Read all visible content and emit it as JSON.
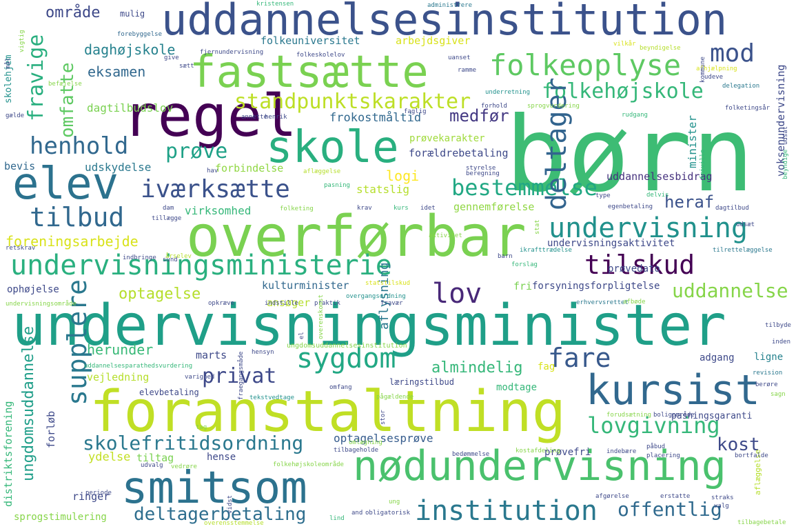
{
  "words": [
    {
      "text": "børn",
      "color": "#3dbc74"
    },
    {
      "text": "undervisningsminister",
      "color": "#1f9f88"
    },
    {
      "text": "uddannelsesinstitution",
      "color": "#3b528b"
    },
    {
      "text": "foranstaltning",
      "color": "#c0df25"
    },
    {
      "text": "overførbar",
      "color": "#7ad151"
    },
    {
      "text": "nødundervisning",
      "color": "#4ac16d"
    },
    {
      "text": "fastsætte",
      "color": "#7ad151"
    },
    {
      "text": "regel",
      "color": "#440154"
    },
    {
      "text": "skole",
      "color": "#29af7f"
    },
    {
      "text": "smitsom",
      "color": "#2c728e"
    },
    {
      "text": "kursist",
      "color": "#31688e"
    },
    {
      "text": "elev",
      "color": "#2c728e"
    },
    {
      "text": "undervisningsministerie",
      "color": "#2ab07f"
    },
    {
      "text": "folkeoplyse",
      "color": "#5ec962"
    },
    {
      "text": "undervisning",
      "color": "#21918c"
    },
    {
      "text": "institution",
      "color": "#2a788e"
    },
    {
      "text": "sygdom",
      "color": "#22a884"
    },
    {
      "text": "iværksætte",
      "color": "#3b528b"
    },
    {
      "text": "standpunktskarakter",
      "color": "#bddf26"
    },
    {
      "text": "deltager",
      "color": "#32648e"
    },
    {
      "text": "tilskud",
      "color": "#440154"
    },
    {
      "text": "lovgivning",
      "color": "#35b779"
    },
    {
      "text": "supplere",
      "color": "#2a788e"
    },
    {
      "text": "bestemmelse",
      "color": "#22a884"
    },
    {
      "text": "folkehøjskole",
      "color": "#35b779"
    },
    {
      "text": "tilbud",
      "color": "#31688e"
    },
    {
      "text": "henhold",
      "color": "#31688e"
    },
    {
      "text": "offentlig",
      "color": "#306a8e"
    },
    {
      "text": "deltagerbetaling",
      "color": "#2e6e8e"
    },
    {
      "text": "skolefritidsordning",
      "color": "#2a788e"
    },
    {
      "text": "privat",
      "color": "#3e4989"
    },
    {
      "text": "fare",
      "color": "#38598c"
    },
    {
      "text": "uddannelse",
      "color": "#86d549"
    },
    {
      "text": "lov",
      "color": "#482878"
    },
    {
      "text": "mod",
      "color": "#3b528b"
    },
    {
      "text": "omfatte",
      "color": "#5ec962"
    },
    {
      "text": "fravige",
      "color": "#29af7f"
    },
    {
      "text": "prøve",
      "color": "#1fa187"
    },
    {
      "text": "område",
      "color": "#3e4989"
    },
    {
      "text": "ungdomsuddannelse",
      "color": "#1f9e89"
    },
    {
      "text": "heraf",
      "color": "#3b528b"
    },
    {
      "text": "kost",
      "color": "#3e4a89"
    },
    {
      "text": "optagelse",
      "color": "#b5de2b"
    },
    {
      "text": "foreningsarbejde",
      "color": "#d8e219"
    },
    {
      "text": "daghøjskole",
      "color": "#26828e"
    },
    {
      "text": "eksamen",
      "color": "#31688e"
    },
    {
      "text": "logi",
      "color": "#fde725"
    },
    {
      "text": "medfør",
      "color": "#443983"
    },
    {
      "text": "almindelig",
      "color": "#35b779"
    },
    {
      "text": "herunder",
      "color": "#38b977"
    },
    {
      "text": "aflysning",
      "color": "#2a788e"
    },
    {
      "text": "ydelse",
      "color": "#c2df23"
    },
    {
      "text": "frokostmåltid",
      "color": "#31688e"
    },
    {
      "text": "optagelsesprøve",
      "color": "#365c8d"
    },
    {
      "text": "dagtilbudslov",
      "color": "#7ad151"
    },
    {
      "text": "udskydelse",
      "color": "#2a788e"
    },
    {
      "text": "bevis",
      "color": "#31688e"
    },
    {
      "text": "prøvekarakter",
      "color": "#9fda3a"
    },
    {
      "text": "forældrebetaling",
      "color": "#3e4989"
    },
    {
      "text": "forbindelse",
      "color": "#90d743"
    },
    {
      "text": "statslig",
      "color": "#b5de2b"
    },
    {
      "text": "virksomhed",
      "color": "#35b779"
    },
    {
      "text": "gennemførelse",
      "color": "#90d743"
    },
    {
      "text": "uddannelsesbidrag",
      "color": "#46327e"
    },
    {
      "text": "undervisningsaktivitet",
      "color": "#3e4989"
    },
    {
      "text": "kulturminister",
      "color": "#31688e"
    },
    {
      "text": "ansøger",
      "color": "#b5de2b"
    },
    {
      "text": "forsyningsforpligtelse",
      "color": "#3e4989"
    },
    {
      "text": "prøvedato",
      "color": "#3e4989"
    },
    {
      "text": "ophøjelse",
      "color": "#3e4989"
    },
    {
      "text": "fri",
      "color": "#7ad151"
    },
    {
      "text": "folkeuniversitet",
      "color": "#2a788e"
    },
    {
      "text": "arbejdsgiver",
      "color": "#d8e219"
    },
    {
      "text": "minister",
      "color": "#21918c"
    },
    {
      "text": "voksenundervisning",
      "color": "#3e4989"
    },
    {
      "text": "marts",
      "color": "#3e4989"
    },
    {
      "text": "adgang",
      "color": "#3e4989"
    },
    {
      "text": "ligne",
      "color": "#26828e"
    },
    {
      "text": "fag",
      "color": "#d8e219"
    },
    {
      "text": "modtage",
      "color": "#35b779"
    },
    {
      "text": "vejledning",
      "color": "#b5de2b"
    },
    {
      "text": "ungdomsuddannelsesinstitution",
      "color": "#86d549"
    },
    {
      "text": "læringstilbud",
      "color": "#3e4989"
    },
    {
      "text": "forløb",
      "color": "#3e4989"
    },
    {
      "text": "tiltag",
      "color": "#7ad151"
    },
    {
      "text": "hense",
      "color": "#3e4989"
    },
    {
      "text": "prøvefri",
      "color": "#3e4989"
    },
    {
      "text": "distriktsforening",
      "color": "#35b779"
    },
    {
      "text": "ringer",
      "color": "#3e4989"
    },
    {
      "text": "sprogstimulering",
      "color": "#86d549"
    },
    {
      "text": "pasningsgaranti",
      "color": "#3e4989"
    },
    {
      "text": "elevbetaling",
      "color": "#3e4989"
    },
    {
      "text": "mulig",
      "color": "#3e4989"
    },
    {
      "text": "skolehjem",
      "color": "#21918c"
    },
    {
      "text": "forebyggelse",
      "color": "#31688e"
    },
    {
      "text": "kristensen",
      "color": "#35b779"
    },
    {
      "text": "administrere",
      "color": "#2a788e"
    },
    {
      "text": "fjernundervisning",
      "color": "#3e4989"
    },
    {
      "text": "folkeskolelov",
      "color": "#3e4989"
    },
    {
      "text": "vilkår",
      "color": "#d8e219"
    },
    {
      "text": "beyndigelse",
      "color": "#b5de2b"
    },
    {
      "text": "beyndige",
      "color": "#35b779"
    },
    {
      "text": "afhjælpning",
      "color": "#d8e219"
    },
    {
      "text": "udeve",
      "color": "#3e4989"
    },
    {
      "text": "delegation",
      "color": "#2a788e"
    },
    {
      "text": "sprogvurdering",
      "color": "#86d549"
    },
    {
      "text": "folketingsår",
      "color": "#3e4989"
    },
    {
      "text": "friville",
      "color": "#35b779"
    },
    {
      "text": "styrelse",
      "color": "#3e4989"
    },
    {
      "text": "beregning",
      "color": "#3e4989"
    },
    {
      "text": "aflæggelse",
      "color": "#b5de2b"
    },
    {
      "text": "pasning",
      "color": "#35b779"
    },
    {
      "text": "folketing",
      "color": "#86d549"
    },
    {
      "text": "krav",
      "color": "#3e4989"
    },
    {
      "text": "kurs",
      "color": "#35b779"
    },
    {
      "text": "idet",
      "color": "#3e4989"
    },
    {
      "text": "egenbetaling",
      "color": "#3e4989"
    },
    {
      "text": "dagtilbud",
      "color": "#3e4989"
    },
    {
      "text": "delvis",
      "color": "#35b779"
    },
    {
      "text": "tillægge",
      "color": "#3e4989"
    },
    {
      "text": "dam",
      "color": "#3e4989"
    },
    {
      "text": "indbringe",
      "color": "#3e4989"
    },
    {
      "text": "årselev",
      "color": "#b5de2b"
    },
    {
      "text": "ikrafttrædelse",
      "color": "#21918c"
    },
    {
      "text": "forslag",
      "color": "#35b779"
    },
    {
      "text": "tilrettelæggelse",
      "color": "#2a788e"
    },
    {
      "text": "undervisningsområde",
      "color": "#86d549"
    },
    {
      "text": "opkræve",
      "color": "#3e4989"
    },
    {
      "text": "indstille",
      "color": "#3e4989"
    },
    {
      "text": "praktik",
      "color": "#3e4989"
    },
    {
      "text": "fravær",
      "color": "#3e4989"
    },
    {
      "text": "overgangsordning",
      "color": "#21918c"
    },
    {
      "text": "statstilskud",
      "color": "#d8e219"
    },
    {
      "text": "erhvervsrettet",
      "color": "#2a788e"
    },
    {
      "text": "afbøde",
      "color": "#86d549"
    },
    {
      "text": "tilbyde",
      "color": "#3e4989"
    },
    {
      "text": "inden",
      "color": "#3e4989"
    },
    {
      "text": "uddannelsesparathedsvurdering",
      "color": "#35b779"
    },
    {
      "text": "hensyn",
      "color": "#3e4989"
    },
    {
      "text": "varighed",
      "color": "#3e4989"
    },
    {
      "text": "omfang",
      "color": "#3e4989"
    },
    {
      "text": "pågældende",
      "color": "#86d549"
    },
    {
      "text": "revision",
      "color": "#2a788e"
    },
    {
      "text": "berøre",
      "color": "#3e4989"
    },
    {
      "text": "tekstvedtage",
      "color": "#21918c"
    },
    {
      "text": "forudsætning",
      "color": "#86d549"
    },
    {
      "text": "boligområde",
      "color": "#3e4989"
    },
    {
      "text": "folkehøjskoleområde",
      "color": "#86d549"
    },
    {
      "text": "omlægning",
      "color": "#86d549"
    },
    {
      "text": "bortfalde",
      "color": "#3e4989"
    },
    {
      "text": "tilbageholde",
      "color": "#3e4989"
    },
    {
      "text": "bedømmelse",
      "color": "#3e4989"
    },
    {
      "text": "kostafdeling",
      "color": "#86d549"
    },
    {
      "text": "indebære",
      "color": "#3e4989"
    },
    {
      "text": "påbud",
      "color": "#3e4989"
    },
    {
      "text": "placering",
      "color": "#3e4989"
    },
    {
      "text": "udvalg",
      "color": "#3e4989"
    },
    {
      "text": "vedrøre",
      "color": "#86d549"
    },
    {
      "text": "periode",
      "color": "#3e4989"
    },
    {
      "text": "afgørelse",
      "color": "#3e4989"
    },
    {
      "text": "erstatte",
      "color": "#3e4989"
    },
    {
      "text": "straks",
      "color": "#3e4989"
    },
    {
      "text": "valg",
      "color": "#3e4989"
    },
    {
      "text": "ung",
      "color": "#86d549"
    },
    {
      "text": "and",
      "color": "#3e4989"
    },
    {
      "text": "obligatorisk",
      "color": "#3e4989"
    },
    {
      "text": "lind",
      "color": "#35b779"
    },
    {
      "text": "overenskomst",
      "color": "#86d549"
    },
    {
      "text": "overensstemmelse",
      "color": "#b5de2b"
    },
    {
      "text": "tilbagebetale",
      "color": "#86d549"
    },
    {
      "text": "gælde",
      "color": "#3e4989"
    },
    {
      "text": "befæjelse",
      "color": "#86d549"
    },
    {
      "text": "sætt",
      "color": "#3e4989"
    },
    {
      "text": "give",
      "color": "#3e4989"
    },
    {
      "text": "uanset",
      "color": "#3e4989"
    },
    {
      "text": "ramme",
      "color": "#3e4989"
    },
    {
      "text": "underretning",
      "color": "#21918c"
    },
    {
      "text": "annette",
      "color": "#3e4989"
    },
    {
      "text": "henrik",
      "color": "#3e4989"
    },
    {
      "text": "faglig",
      "color": "#3e4989"
    },
    {
      "text": "forhold",
      "color": "#3e4989"
    },
    {
      "text": "hav",
      "color": "#3e4989"
    },
    {
      "text": "retskrav",
      "color": "#3e4989"
    },
    {
      "text": "sund",
      "color": "#3e4989"
    },
    {
      "text": "barn",
      "color": "#3e4989"
    },
    {
      "text": "udsat",
      "color": "#3e4989"
    },
    {
      "text": "udsæt",
      "color": "#3e4989"
    },
    {
      "text": "rudgang",
      "color": "#35b779"
    },
    {
      "text": "tag",
      "color": "#86d549"
    },
    {
      "text": "stat",
      "color": "#86d549"
    },
    {
      "text": "aktivitet",
      "color": "#86d549"
    },
    {
      "text": "type",
      "color": "#3e4989"
    },
    {
      "text": "el",
      "color": "#3e4989"
    },
    {
      "text": "mål",
      "color": "#3e4989"
    },
    {
      "text": "vigtig",
      "color": "#86d549"
    },
    {
      "text": "vidst",
      "color": "#3e4989"
    },
    {
      "text": "fraegangsmåde",
      "color": "#3e4989"
    },
    {
      "text": "stor",
      "color": "#3e4989"
    },
    {
      "text": "kommune",
      "color": "#3e4989"
    },
    {
      "text": "sagn",
      "color": "#86d549"
    },
    {
      "text": "klage",
      "color": "#3e4989"
    },
    {
      "text": "årig",
      "color": "#b5de2b"
    }
  ]
}
